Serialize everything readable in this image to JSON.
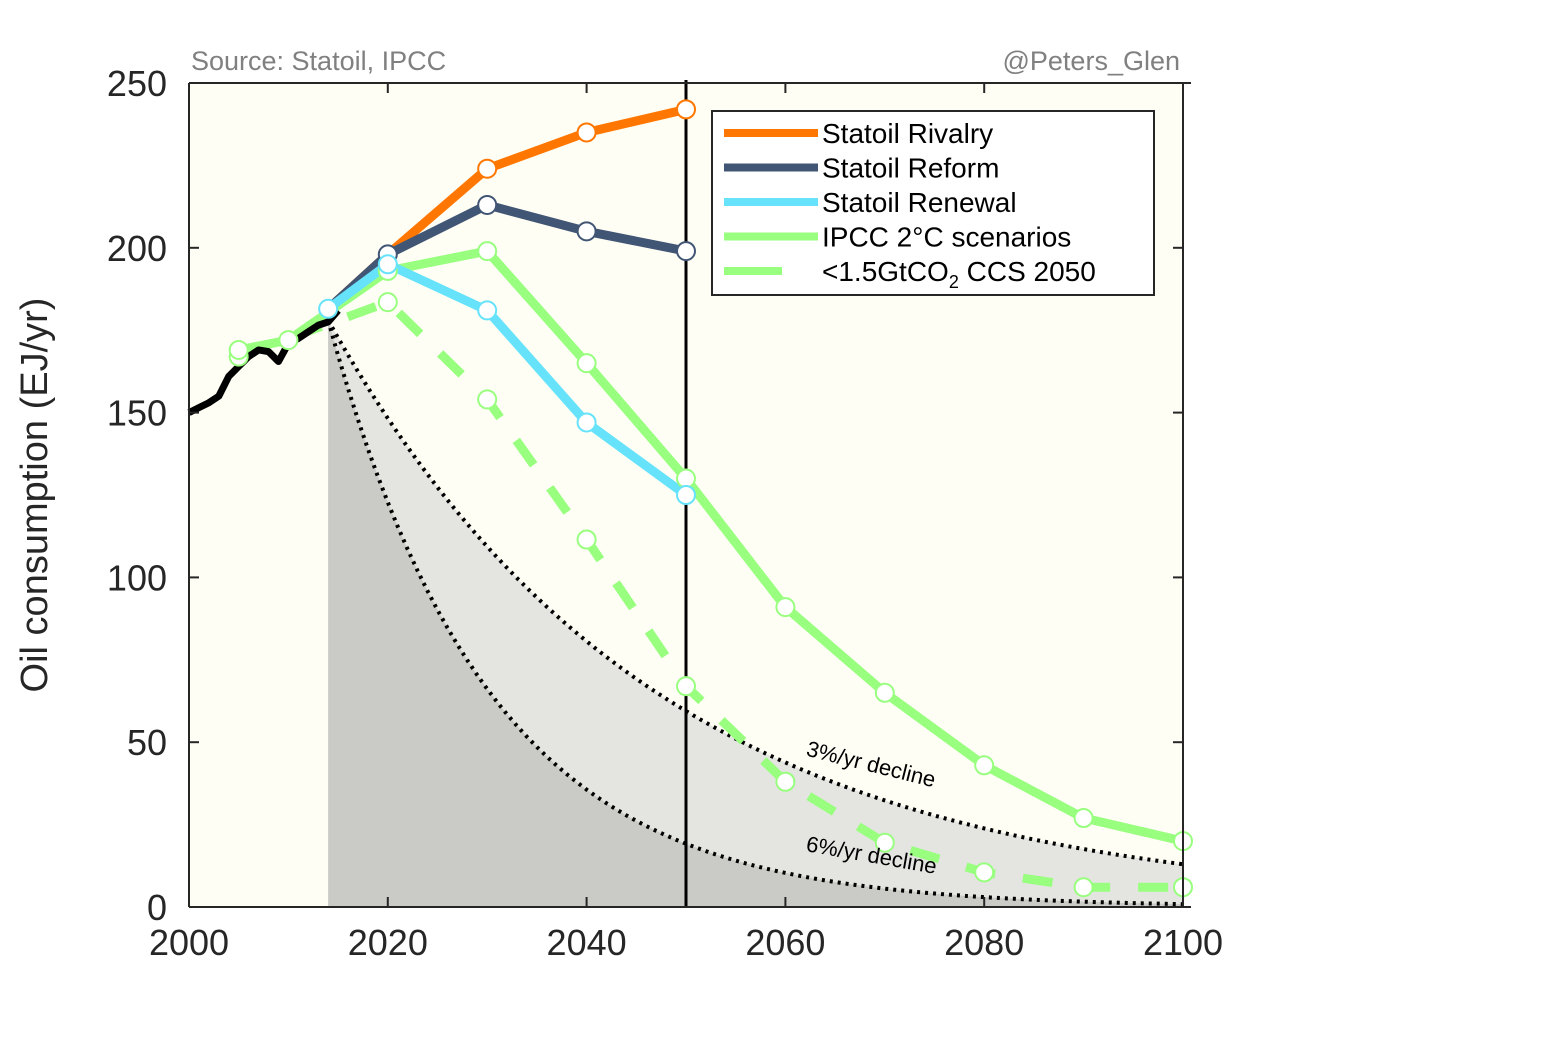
{
  "chart_data": {
    "type": "line",
    "title": "",
    "xlabel": "",
    "ylabel": "Oil consumption (EJ/yr)",
    "xlim": [
      2000,
      2100
    ],
    "ylim": [
      0,
      250
    ],
    "xticks": [
      2000,
      2020,
      2040,
      2060,
      2080,
      2100
    ],
    "yticks": [
      0,
      50,
      100,
      150,
      200,
      250
    ],
    "grid": false,
    "legend_position": "top-right",
    "source_note": "Source: Statoil, IPCC",
    "credit_note": "@Peters_Glen",
    "vertical_marker_x": 2050,
    "historical": {
      "name": "Historical",
      "color": "#000000",
      "x": [
        2000,
        2001,
        2002,
        2003,
        2004,
        2005,
        2006,
        2007,
        2008,
        2009,
        2010,
        2011,
        2012,
        2013,
        2014,
        2015
      ],
      "y": [
        150,
        151.5,
        153,
        155,
        161,
        164,
        167,
        169,
        168.5,
        165.5,
        171,
        172.5,
        174.5,
        176.5,
        177.5,
        181
      ]
    },
    "series": [
      {
        "name": "Statoil Rivalry",
        "color": "#FF7700",
        "style": "solid",
        "x": [
          2014,
          2020,
          2030,
          2040,
          2050
        ],
        "y": [
          181.5,
          198,
          224,
          235,
          242
        ],
        "markers": [
          2030,
          2040,
          2050
        ]
      },
      {
        "name": "Statoil Reform",
        "color": "#415574",
        "style": "solid",
        "x": [
          2014,
          2020,
          2030,
          2040,
          2050
        ],
        "y": [
          181.5,
          198,
          213,
          205,
          199
        ],
        "markers": [
          2020,
          2030,
          2040,
          2050
        ]
      },
      {
        "name": "Statoil Renewal",
        "color": "#66E3FA",
        "style": "solid",
        "x": [
          2014,
          2020,
          2030,
          2040,
          2050
        ],
        "y": [
          181.5,
          195,
          181,
          147,
          125
        ],
        "markers": [
          2014,
          2020,
          2030,
          2040,
          2050
        ]
      },
      {
        "name": "IPCC 2°C scenarios",
        "color": "#99FF7F",
        "style": "solid",
        "x": [
          2005,
          2010,
          2020,
          2030,
          2040,
          2050,
          2060,
          2070,
          2080,
          2090,
          2100
        ],
        "y": [
          169,
          172,
          193,
          199,
          165,
          130,
          91,
          65,
          43,
          27,
          20
        ],
        "markers": [
          2005,
          2010,
          2020,
          2030,
          2040,
          2050,
          2060,
          2070,
          2080,
          2090,
          2100
        ]
      },
      {
        "name": "<1.5GtCO2 CCS 2050",
        "legend_main": "<1.5GtCO",
        "legend_sub": "2",
        "legend_tail": " CCS 2050",
        "color": "#99FF7F",
        "style": "dashed",
        "x": [
          2005,
          2020,
          2030,
          2040,
          2050,
          2060,
          2070,
          2080,
          2090,
          2100
        ],
        "y": [
          167,
          183.5,
          154,
          111.5,
          67,
          38,
          19.5,
          10.5,
          6,
          6
        ],
        "markers": [
          2005,
          2020,
          2030,
          2040,
          2050,
          2060,
          2070,
          2080,
          2090,
          2100
        ]
      }
    ],
    "decline_curves": [
      {
        "name": "3%/yr decline",
        "label": "3%/yr decline",
        "rate": 0.03,
        "start_year": 2014,
        "start_value": 178,
        "fill": "#E4E4E1"
      },
      {
        "name": "6%/yr decline",
        "label": "6%/yr decline",
        "rate": 0.06,
        "start_year": 2014,
        "start_value": 178,
        "fill": "#CACAC6"
      }
    ],
    "plot_background": "#FFFEF5"
  }
}
